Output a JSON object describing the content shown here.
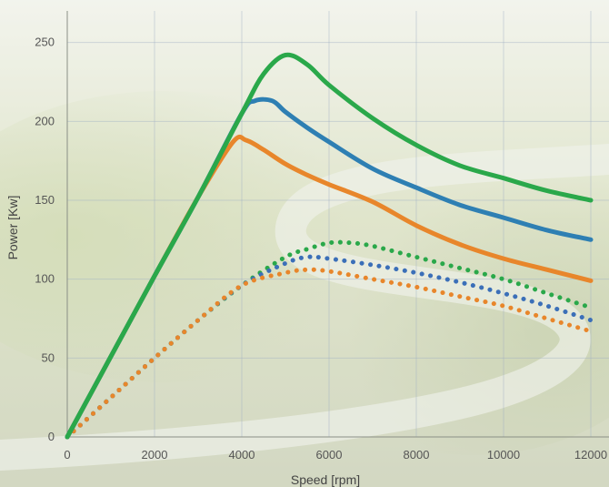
{
  "chart_data": {
    "type": "line",
    "xlabel": "Speed [rpm]",
    "ylabel": "Power [Kw]",
    "xlim": [
      0,
      12000
    ],
    "ylim": [
      0,
      270
    ],
    "x_ticks": [
      "0",
      "2000",
      "4000",
      "6000",
      "8000",
      "10000",
      "12000"
    ],
    "y_ticks": [
      "0",
      "50",
      "100",
      "150",
      "200",
      "250"
    ],
    "grid": true,
    "legend_placement": "top (cut off)",
    "legend_entries": [
      "",
      "",
      ""
    ],
    "series": [
      {
        "color": "#2aa84a",
        "style": "solid",
        "x": [
          0,
          1000,
          2000,
          3000,
          4000,
          4500,
          5000,
          5500,
          6000,
          7000,
          8000,
          9000,
          10000,
          11000,
          12000
        ],
        "y": [
          0,
          51,
          102,
          152,
          205,
          230,
          242,
          236,
          223,
          202,
          185,
          172,
          164,
          156,
          150
        ]
      },
      {
        "color": "#2e7fb3",
        "style": "solid",
        "x": [
          0,
          1000,
          2000,
          3000,
          4000,
          4300,
          4700,
          5000,
          5500,
          6000,
          7000,
          8000,
          9000,
          10000,
          11000,
          12000
        ],
        "y": [
          0,
          51,
          102,
          152,
          205,
          213,
          213,
          206,
          196,
          187,
          170,
          158,
          147,
          139,
          131,
          125
        ]
      },
      {
        "color": "#e8862b",
        "style": "solid",
        "x": [
          0,
          1000,
          2000,
          3000,
          3800,
          4100,
          4500,
          5000,
          5500,
          6000,
          7000,
          8000,
          9000,
          10000,
          11000,
          12000
        ],
        "y": [
          0,
          51,
          102,
          152,
          187,
          188,
          182,
          173,
          166,
          160,
          149,
          134,
          122,
          113,
          106,
          99
        ]
      },
      {
        "color": "#2aa84a",
        "style": "dotted",
        "x": [
          0,
          1000,
          2000,
          3000,
          4000,
          5000,
          5500,
          6000,
          6500,
          7000,
          8000,
          9000,
          10000,
          11000,
          12000
        ],
        "y": [
          0,
          25,
          50,
          74,
          96,
          114,
          119,
          123,
          123,
          121,
          114,
          107,
          100,
          91,
          82
        ]
      },
      {
        "color": "#3b6fb8",
        "style": "dotted",
        "x": [
          0,
          1000,
          2000,
          3000,
          4000,
          5000,
          5500,
          6000,
          7000,
          8000,
          9000,
          10000,
          11000,
          12000
        ],
        "y": [
          0,
          25,
          50,
          74,
          96,
          110,
          114,
          113,
          109,
          104,
          98,
          91,
          83,
          74
        ]
      },
      {
        "color": "#e8862b",
        "style": "dotted",
        "x": [
          0,
          1000,
          2000,
          3000,
          4000,
          5000,
          5500,
          6000,
          7000,
          8000,
          9000,
          10000,
          11000,
          12000
        ],
        "y": [
          0,
          25,
          50,
          74,
          96,
          104,
          106,
          105,
          100,
          95,
          89,
          83,
          75,
          67
        ]
      }
    ]
  }
}
